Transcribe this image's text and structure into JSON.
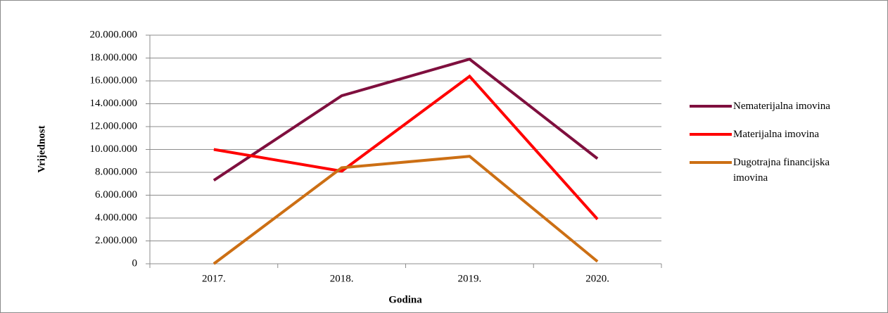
{
  "chart_data": {
    "type": "line",
    "ylabel": "Vrijednost",
    "xlabel": "Godina",
    "categories": [
      "2017.",
      "2018.",
      "2019.",
      "2020."
    ],
    "series": [
      {
        "name": "Nematerijalna imovina",
        "color": "#7f0f3e",
        "values": [
          7300000,
          14700000,
          17900000,
          9200000
        ]
      },
      {
        "name": "Materijalna imovina",
        "color": "#ff0000",
        "values": [
          10000000,
          8100000,
          16400000,
          3900000
        ]
      },
      {
        "name": "Dugotrajna financijska imovina",
        "color": "#cc6f14",
        "values": [
          0,
          8400000,
          9400000,
          200000
        ]
      }
    ],
    "ylim": [
      0,
      20000000
    ],
    "yticks": [
      0,
      {
        "value": 2000000,
        "label": "2.000.000"
      },
      {
        "value": 4000000,
        "label": "4.000.000"
      },
      {
        "value": 6000000,
        "label": "6.000.000"
      },
      {
        "value": 8000000,
        "label": "8.000.000"
      },
      {
        "value": 10000000,
        "label": "10.000.000"
      },
      {
        "value": 12000000,
        "label": "12.000.000"
      },
      {
        "value": 14000000,
        "label": "14.000.000"
      },
      {
        "value": 16000000,
        "label": "16.000.000"
      },
      {
        "value": 18000000,
        "label": "18.000.000"
      },
      {
        "value": 20000000,
        "label": "20.000.000"
      }
    ],
    "grid": true,
    "legend": "right"
  }
}
